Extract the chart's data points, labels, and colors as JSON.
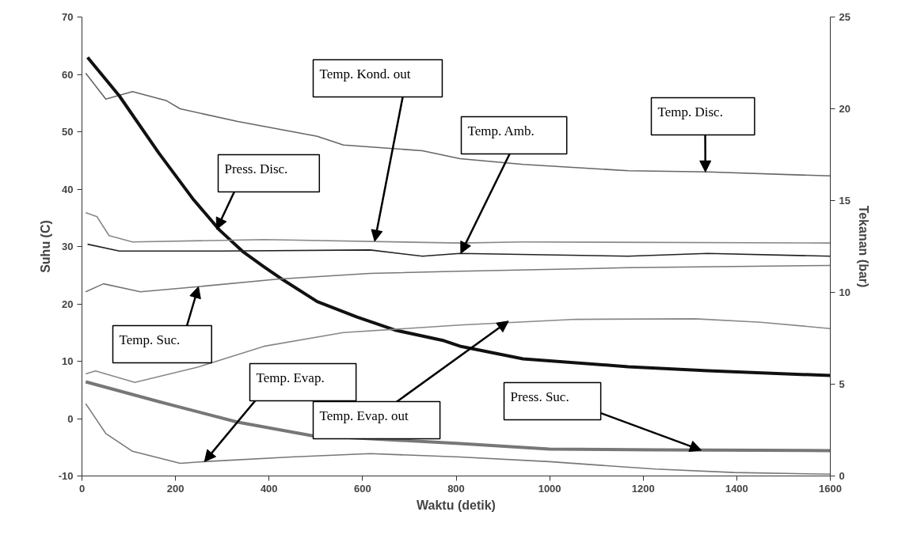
{
  "chart_data": {
    "type": "line",
    "xlabel": "Waktu (detik)",
    "ylabel": "Suhu (C)",
    "y2label": "Tekanan (bar)",
    "xlim": [
      0,
      1600
    ],
    "xticks": [
      0,
      200,
      400,
      600,
      800,
      1000,
      1200,
      1400,
      1600
    ],
    "ylim": [
      -10,
      70
    ],
    "yticks": [
      -10,
      0,
      10,
      20,
      30,
      40,
      50,
      60,
      70
    ],
    "y2lim": [
      0,
      25
    ],
    "y2ticks": [
      0,
      5,
      10,
      15,
      20,
      25
    ],
    "grid": false,
    "marker": "none",
    "line_style": "solid",
    "annotations": [
      {
        "text": "Temp. Disc.",
        "x": 1333,
        "y": 43.0
      },
      {
        "text": "Press. Disc.",
        "x": 288,
        "y": 33.0
      },
      {
        "text": "Temp. Kond. out",
        "x": 626,
        "y": 30.9
      },
      {
        "text": "Temp. Amb.",
        "x": 810,
        "y": 28.8
      },
      {
        "text": "Temp. Suc.",
        "x": 249,
        "y": 23.0
      },
      {
        "text": "Temp. Evap. out",
        "x": 912,
        "y": 17.0
      },
      {
        "text": "Press. Suc.",
        "x": 1324,
        "y": -5.5
      },
      {
        "text": "Temp. Evap.",
        "x": 262,
        "y": -7.5
      }
    ],
    "series": [
      {
        "color": "#666666",
        "x": [
          8,
          51,
          108,
          181,
          210,
          333,
          503,
          559,
          728,
          808,
          943,
          1168,
          1338,
          1600
        ],
        "values": [
          60.2,
          55.7,
          57.0,
          55.4,
          54.0,
          51.8,
          49.2,
          47.7,
          46.7,
          45.3,
          44.3,
          43.2,
          43.0,
          42.3
        ]
      },
      {
        "color": "#111111",
        "axis": "y2",
        "x": [
          12,
          80,
          164,
          237,
          294,
          345,
          389,
          423,
          503,
          588,
          672,
          774,
          808,
          943,
          1168,
          1338,
          1600
        ],
        "values": [
          22.8,
          20.7,
          17.6,
          15.1,
          13.4,
          12.2,
          11.4,
          10.8,
          9.5,
          8.66,
          7.93,
          7.37,
          7.07,
          6.38,
          5.95,
          5.73,
          5.47
        ]
      },
      {
        "color": "#888888",
        "x": [
          8,
          32,
          58,
          108,
          389,
          808,
          943,
          1600
        ],
        "values": [
          35.9,
          35.2,
          31.9,
          30.8,
          31.2,
          30.6,
          30.8,
          30.6
        ]
      },
      {
        "color": "#222222",
        "x": [
          12,
          80,
          300,
          616,
          728,
          808,
          1168,
          1338,
          1600
        ],
        "values": [
          30.4,
          29.2,
          29.2,
          29.4,
          28.3,
          28.8,
          28.3,
          28.8,
          28.3
        ]
      },
      {
        "color": "#777777",
        "x": [
          8,
          46,
          125,
          249,
          418,
          616,
          808,
          1168,
          1600
        ],
        "values": [
          22.1,
          23.5,
          22.1,
          23.0,
          24.3,
          25.3,
          25.7,
          26.3,
          26.7
        ]
      },
      {
        "color": "#888888",
        "x": [
          8,
          29,
          113,
          249,
          389,
          559,
          808,
          1056,
          1311,
          1451,
          1600
        ],
        "values": [
          7.8,
          8.3,
          6.3,
          9.0,
          12.6,
          15.0,
          16.3,
          17.3,
          17.4,
          16.8,
          15.7
        ]
      },
      {
        "color": "#777777",
        "axis": "y2",
        "x": [
          8,
          164,
          333,
          491,
          808,
          999,
          1226,
          1600
        ],
        "values": [
          5.13,
          4.05,
          2.93,
          2.2,
          1.77,
          1.47,
          1.42,
          1.38
        ]
      },
      {
        "color": "#777777",
        "x": [
          8,
          51,
          108,
          210,
          261,
          447,
          616,
          808,
          999,
          1226,
          1395,
          1600
        ],
        "values": [
          2.6,
          -2.6,
          -5.7,
          -7.8,
          -7.5,
          -6.7,
          -6.1,
          -6.7,
          -7.5,
          -8.8,
          -9.4,
          -9.7
        ]
      }
    ]
  }
}
